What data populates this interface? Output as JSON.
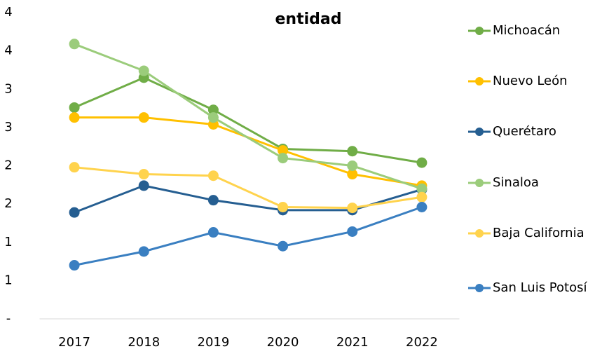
{
  "chart_data": {
    "type": "line",
    "title": "entidad",
    "categories": [
      "2017",
      "2018",
      "2019",
      "2020",
      "2021",
      "2022"
    ],
    "ylim": [
      0,
      4
    ],
    "yticks": [
      {
        "value": 0,
        "label": "-"
      },
      {
        "value": 0.5,
        "label": "1"
      },
      1,
      {
        "value": 1.5,
        "label": "2"
      },
      2,
      {
        "value": 2.5,
        "label": "3"
      },
      3,
      {
        "value": 3.5,
        "label": "4"
      },
      4
    ],
    "grid": false,
    "legend": "right",
    "series": [
      {
        "name": "Michoacán",
        "color": "#70ad47",
        "values": [
          2.76,
          3.15,
          2.73,
          2.22,
          2.19,
          2.04
        ]
      },
      {
        "name": "Nuevo León",
        "color": "#ffc000",
        "values": [
          2.63,
          2.63,
          2.54,
          2.2,
          1.89,
          1.74
        ]
      },
      {
        "name": "Querétaro",
        "color": "#255e91",
        "values": [
          1.39,
          1.74,
          1.55,
          1.42,
          1.42,
          1.69
        ]
      },
      {
        "name": "Sinaloa",
        "color": "#9bcc7b",
        "values": [
          3.59,
          3.24,
          2.63,
          2.1,
          2.0,
          1.7
        ]
      },
      {
        "name": "Baja California",
        "color": "#ffd34d",
        "values": [
          1.98,
          1.89,
          1.87,
          1.46,
          1.45,
          1.59
        ]
      },
      {
        "name": "San Luis Potosí",
        "color": "#3a7fc1",
        "values": [
          0.7,
          0.88,
          1.13,
          0.95,
          1.14,
          1.46
        ]
      }
    ]
  }
}
